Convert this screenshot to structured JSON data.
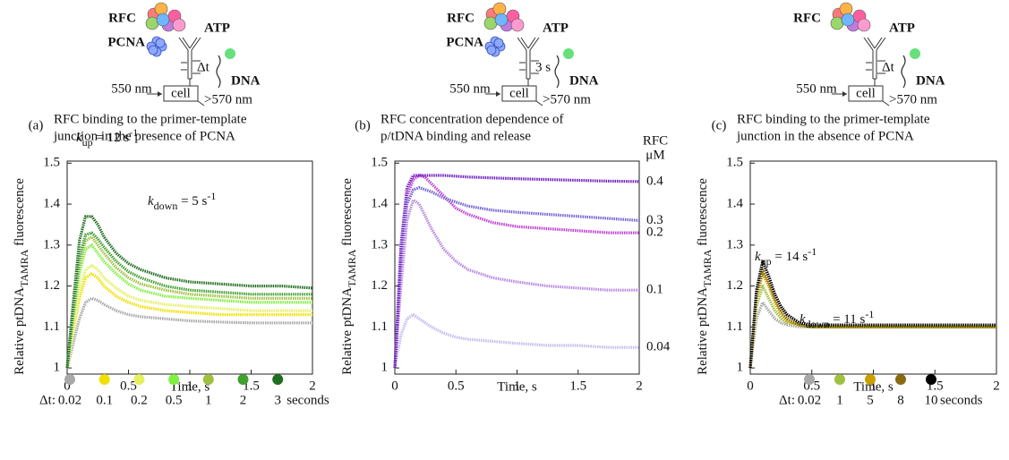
{
  "chart_data": [
    {
      "type": "line",
      "label": "(a)",
      "title": [
        "RFC binding to the primer-template",
        "junction in the presence of PCNA"
      ],
      "schematic": {
        "rfc": "RFC",
        "atp": "ATP",
        "pcna": "PCNA",
        "dna": "DNA",
        "delay": "Δt",
        "excitation": "550 nm",
        "cell": "cell",
        "emission": ">570 nm"
      },
      "xlabel": "Time, s",
      "ylabel": {
        "main": "Relative ptDNA",
        "subscript": "TAMRA",
        "rest": " fluorescence"
      },
      "xlim": [
        0,
        2
      ],
      "ylim": [
        0.985,
        1.505
      ],
      "xticks": [
        0,
        0.5,
        1,
        1.5,
        2
      ],
      "yticks": [
        1,
        1.1,
        1.2,
        1.3,
        1.4,
        1.5
      ],
      "annotations": [
        {
          "symbol": "k",
          "subscript": "up",
          "text": " = 12 s",
          "superscript": "-1"
        },
        {
          "symbol": "k",
          "subscript": "down",
          "text": " = 5 s",
          "superscript": "-1"
        }
      ],
      "legend": "bottom",
      "legend_prefix": "Δt:",
      "legend_suffix": "seconds",
      "x": [
        0,
        0.05,
        0.1,
        0.15,
        0.2,
        0.25,
        0.3,
        0.4,
        0.5,
        0.6,
        0.8,
        1,
        1.25,
        1.5,
        1.75,
        2
      ],
      "series": [
        {
          "name": "0.02",
          "color": "#a8a8a8",
          "values": [
            1.0,
            1.06,
            1.12,
            1.16,
            1.17,
            1.165,
            1.155,
            1.14,
            1.13,
            1.125,
            1.12,
            1.115,
            1.112,
            1.11,
            1.11,
            1.11
          ]
        },
        {
          "name": "0.1",
          "color": "#f0e000",
          "values": [
            1.0,
            1.09,
            1.17,
            1.22,
            1.23,
            1.22,
            1.2,
            1.175,
            1.16,
            1.15,
            1.14,
            1.135,
            1.13,
            1.13,
            1.13,
            1.13
          ]
        },
        {
          "name": "0.2",
          "color": "#e4f060",
          "values": [
            1.0,
            1.1,
            1.19,
            1.24,
            1.25,
            1.24,
            1.22,
            1.195,
            1.175,
            1.165,
            1.155,
            1.15,
            1.145,
            1.14,
            1.14,
            1.14
          ]
        },
        {
          "name": "0.5",
          "color": "#80f040",
          "values": [
            1.0,
            1.12,
            1.23,
            1.29,
            1.3,
            1.28,
            1.26,
            1.23,
            1.205,
            1.19,
            1.175,
            1.17,
            1.165,
            1.16,
            1.16,
            1.16
          ]
        },
        {
          "name": "1",
          "color": "#a0c040",
          "values": [
            1.0,
            1.13,
            1.25,
            1.31,
            1.32,
            1.3,
            1.28,
            1.245,
            1.22,
            1.205,
            1.19,
            1.18,
            1.175,
            1.17,
            1.17,
            1.17
          ]
        },
        {
          "name": "2",
          "color": "#40a030",
          "values": [
            1.0,
            1.14,
            1.27,
            1.325,
            1.33,
            1.315,
            1.295,
            1.26,
            1.235,
            1.22,
            1.2,
            1.19,
            1.185,
            1.18,
            1.18,
            1.18
          ]
        },
        {
          "name": "3",
          "color": "#1f6e1f",
          "values": [
            1.0,
            1.16,
            1.31,
            1.37,
            1.37,
            1.35,
            1.32,
            1.28,
            1.255,
            1.24,
            1.22,
            1.21,
            1.205,
            1.2,
            1.2,
            1.195
          ]
        }
      ]
    },
    {
      "type": "line",
      "label": "(b)",
      "title": [
        "RFC concentration dependence of",
        "p/tDNA binding and release"
      ],
      "schematic": {
        "rfc": "RFC",
        "atp": "ATP",
        "pcna": "PCNA",
        "dna": "DNA",
        "delay": "3 s",
        "excitation": "550 nm",
        "cell": "cell",
        "emission": ">570 nm"
      },
      "xlabel": "Time, s",
      "ylabel": {
        "main": "Relative ptDNA",
        "subscript": "TAMRA",
        "rest": " fluorescence"
      },
      "xlim": [
        0,
        2
      ],
      "ylim": [
        0.985,
        1.505
      ],
      "xticks": [
        0,
        0.5,
        1,
        1.5,
        2
      ],
      "yticks": [
        1,
        1.1,
        1.2,
        1.3,
        1.4,
        1.5
      ],
      "legend": "right",
      "legend_header": [
        "RFC",
        "μM"
      ],
      "x": [
        0,
        0.05,
        0.1,
        0.15,
        0.2,
        0.25,
        0.3,
        0.4,
        0.5,
        0.6,
        0.8,
        1,
        1.25,
        1.5,
        1.75,
        2
      ],
      "series": [
        {
          "name": "0.04",
          "color": "#c4bcec",
          "values": [
            1.0,
            1.08,
            1.12,
            1.13,
            1.12,
            1.11,
            1.1,
            1.085,
            1.075,
            1.07,
            1.065,
            1.06,
            1.055,
            1.055,
            1.05,
            1.05
          ]
        },
        {
          "name": "0.1",
          "color": "#b888e0",
          "values": [
            1.0,
            1.2,
            1.36,
            1.41,
            1.4,
            1.37,
            1.34,
            1.29,
            1.26,
            1.24,
            1.22,
            1.21,
            1.2,
            1.195,
            1.19,
            1.19
          ]
        },
        {
          "name": "0.2",
          "color": "#c040d4",
          "values": [
            1.0,
            1.25,
            1.42,
            1.46,
            1.47,
            1.465,
            1.45,
            1.42,
            1.39,
            1.375,
            1.355,
            1.345,
            1.34,
            1.335,
            1.33,
            1.33
          ]
        },
        {
          "name": "0.3",
          "color": "#7464d4",
          "values": [
            1.0,
            1.27,
            1.4,
            1.435,
            1.44,
            1.435,
            1.43,
            1.415,
            1.405,
            1.395,
            1.385,
            1.38,
            1.375,
            1.37,
            1.365,
            1.36
          ]
        },
        {
          "name": "0.4",
          "color": "#7020c0",
          "values": [
            1.0,
            1.3,
            1.44,
            1.47,
            1.47,
            1.47,
            1.47,
            1.47,
            1.468,
            1.466,
            1.464,
            1.462,
            1.46,
            1.458,
            1.456,
            1.455
          ]
        }
      ]
    },
    {
      "type": "line",
      "label": "(c)",
      "title": [
        "RFC binding to the primer-template",
        "junction in the absence of PCNA"
      ],
      "schematic": {
        "rfc": "RFC",
        "atp": "ATP",
        "dna": "DNA",
        "delay": "Δt",
        "excitation": "550 nm",
        "cell": "cell",
        "emission": ">570 nm"
      },
      "xlabel": "Time, s",
      "ylabel": {
        "main": "Relative ptDNA",
        "subscript": "TAMRA",
        "rest": " fluorescence"
      },
      "xlim": [
        0,
        2
      ],
      "ylim": [
        0.985,
        1.505
      ],
      "xticks": [
        0,
        0.5,
        1,
        1.5,
        2
      ],
      "yticks": [
        1,
        1.1,
        1.2,
        1.3,
        1.4,
        1.5
      ],
      "annotations": [
        {
          "symbol": "k",
          "subscript": "up",
          "text": " = 14 s",
          "superscript": "-1"
        },
        {
          "symbol": "k",
          "subscript": "down",
          "text": " = 11 s",
          "superscript": "-1"
        }
      ],
      "legend": "bottom",
      "legend_prefix": "Δt:",
      "legend_suffix": "seconds",
      "x": [
        0,
        0.05,
        0.1,
        0.15,
        0.2,
        0.25,
        0.3,
        0.4,
        0.5,
        0.6,
        0.8,
        1,
        1.25,
        1.5,
        1.75,
        2
      ],
      "series": [
        {
          "name": "0.02",
          "color": "#a8a8a8",
          "values": [
            1.0,
            1.12,
            1.16,
            1.14,
            1.12,
            1.11,
            1.105,
            1.1,
            1.1,
            1.1,
            1.1,
            1.1,
            1.1,
            1.1,
            1.1,
            1.1
          ]
        },
        {
          "name": "1",
          "color": "#a0c040",
          "values": [
            1.0,
            1.15,
            1.2,
            1.17,
            1.14,
            1.12,
            1.11,
            1.105,
            1.1,
            1.1,
            1.1,
            1.1,
            1.1,
            1.1,
            1.1,
            1.1
          ]
        },
        {
          "name": "5",
          "color": "#c8a000",
          "values": [
            1.0,
            1.17,
            1.23,
            1.2,
            1.16,
            1.13,
            1.115,
            1.105,
            1.1,
            1.1,
            1.1,
            1.1,
            1.1,
            1.1,
            1.1,
            1.1
          ]
        },
        {
          "name": "8",
          "color": "#8a6a10",
          "values": [
            1.0,
            1.18,
            1.24,
            1.21,
            1.17,
            1.14,
            1.12,
            1.105,
            1.1,
            1.1,
            1.1,
            1.1,
            1.1,
            1.1,
            1.1,
            1.1
          ]
        },
        {
          "name": "10",
          "color": "#000000",
          "values": [
            1.0,
            1.19,
            1.26,
            1.225,
            1.18,
            1.15,
            1.13,
            1.11,
            1.105,
            1.105,
            1.105,
            1.105,
            1.105,
            1.105,
            1.105,
            1.105
          ]
        }
      ]
    }
  ]
}
